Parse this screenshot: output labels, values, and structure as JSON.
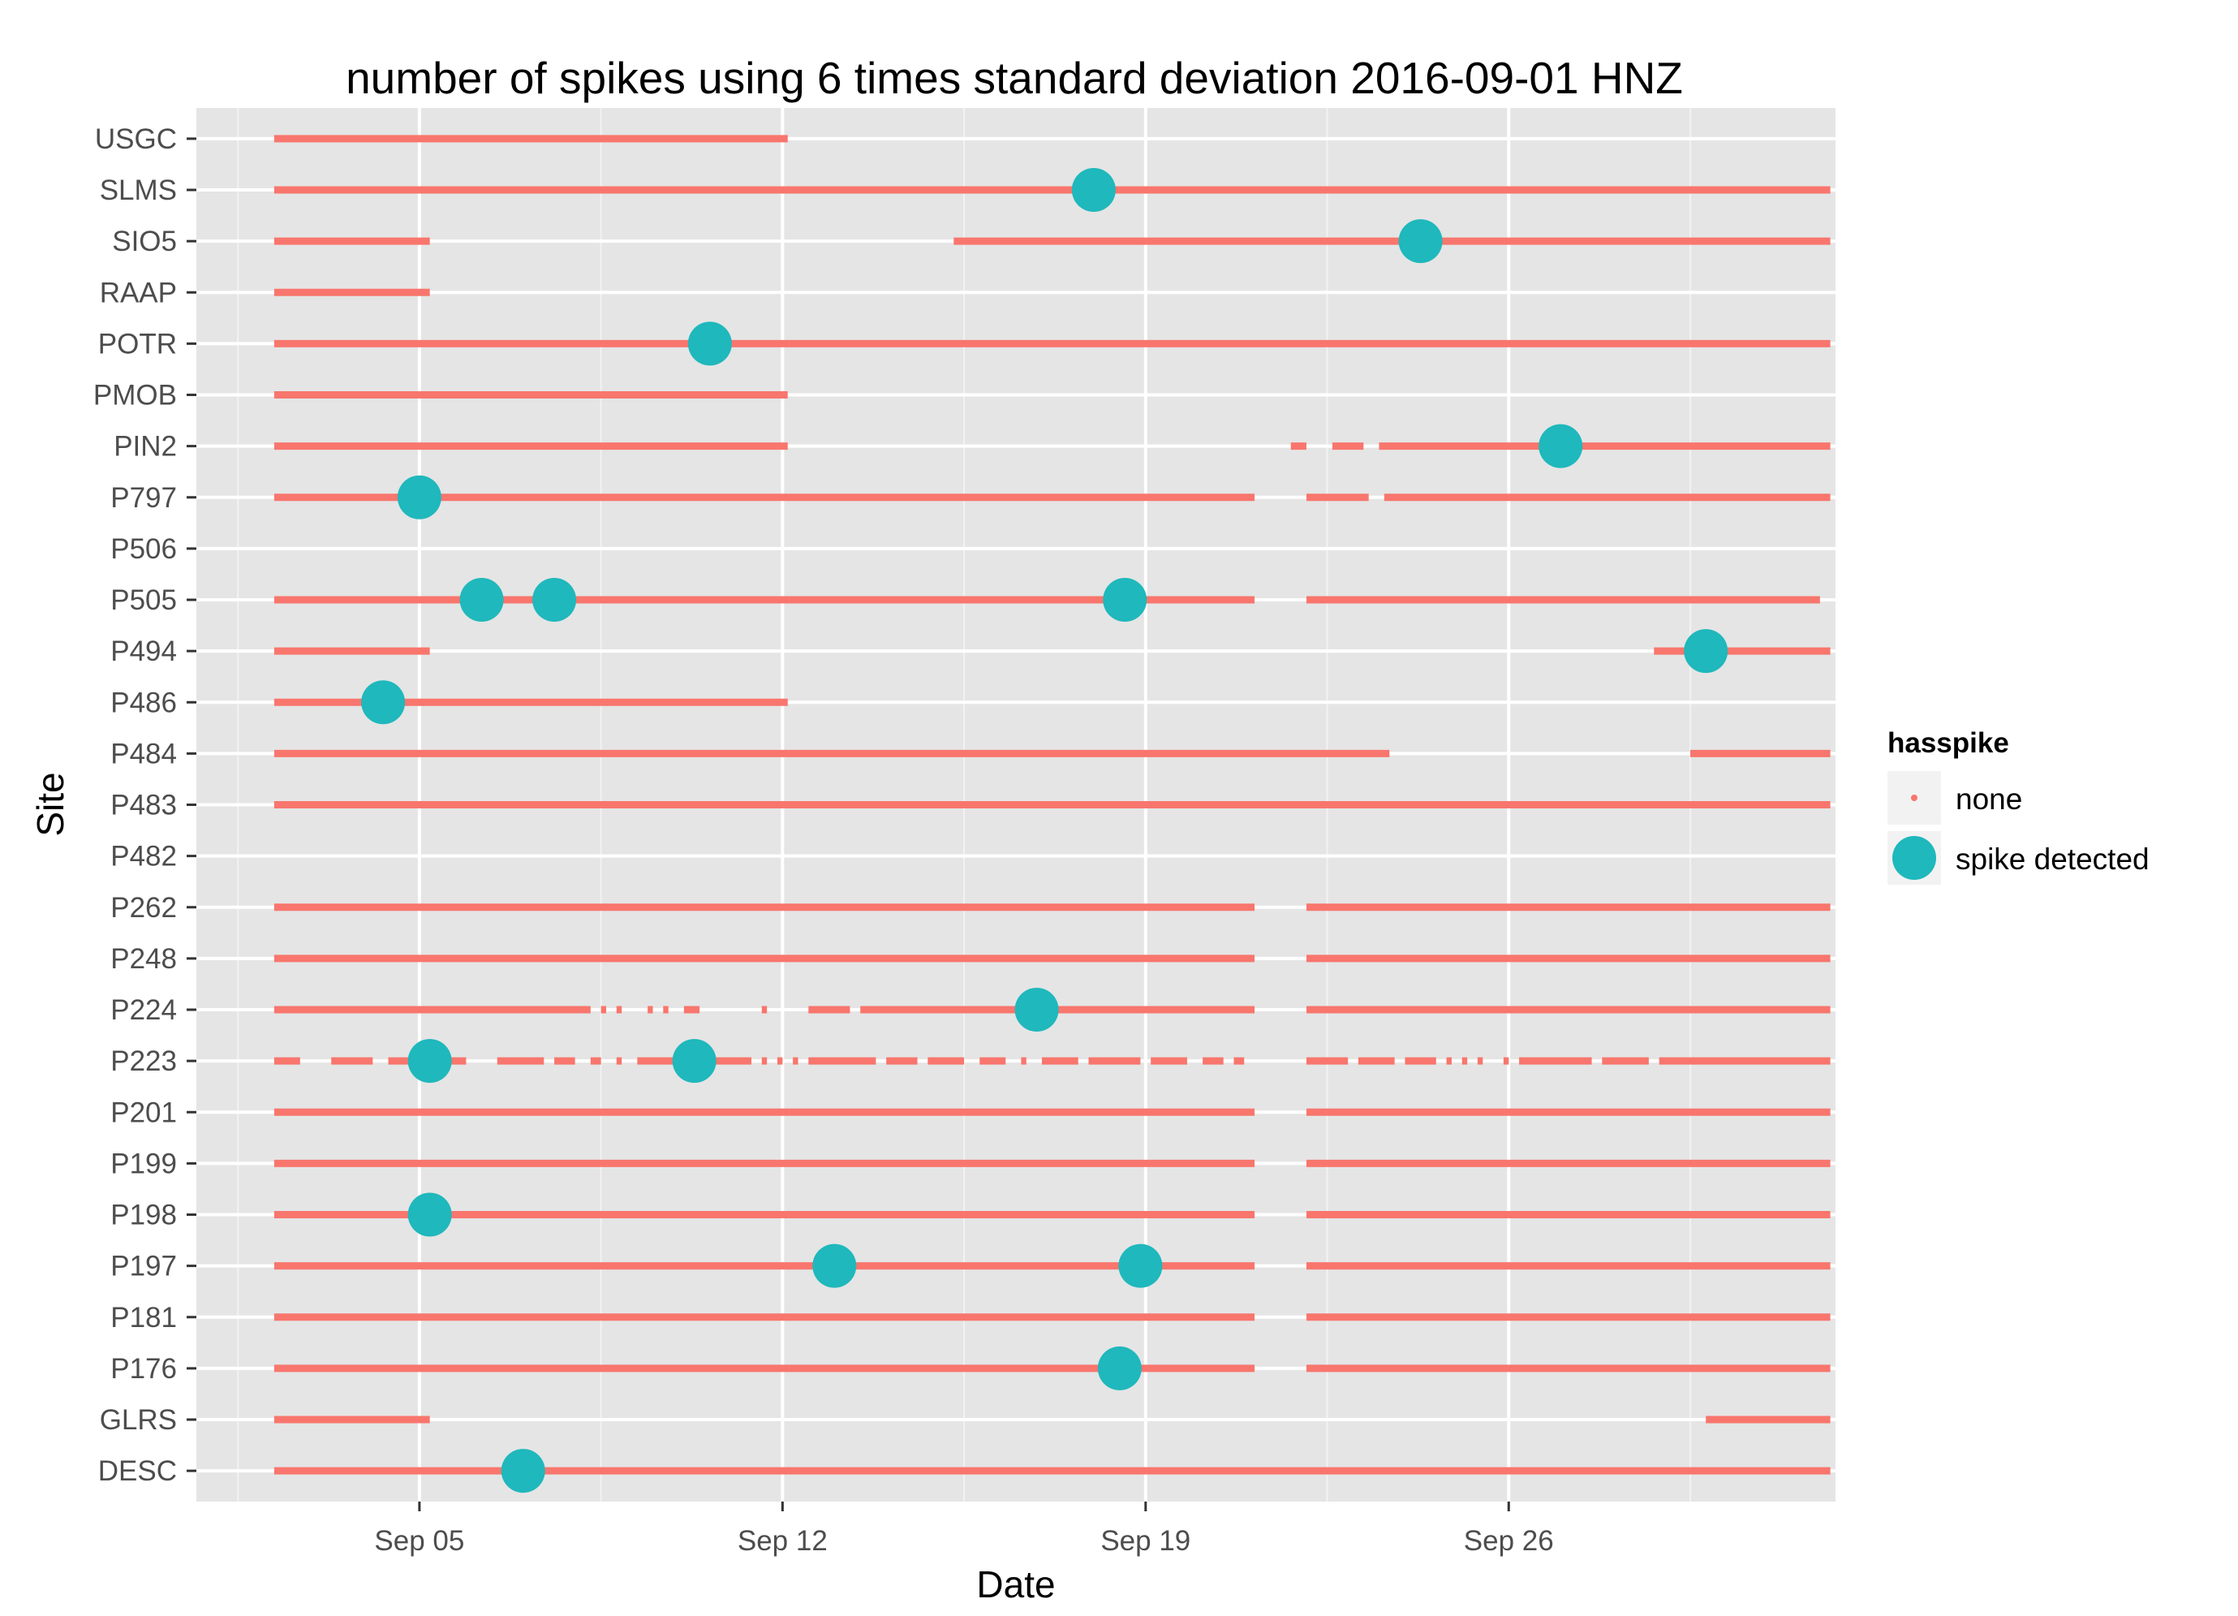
{
  "chart_data": {
    "type": "scatter",
    "title": "number of spikes using  6 times standard deviation 2016-09-01 HNZ",
    "xlabel": "Date",
    "ylabel": "Site",
    "x_domain_days": [
      -0.3,
      31.3
    ],
    "x_ticks": [
      {
        "day": 4,
        "label": "Sep 05"
      },
      {
        "day": 11,
        "label": "Sep 12"
      },
      {
        "day": 18,
        "label": "Sep 19"
      },
      {
        "day": 25,
        "label": "Sep 26"
      }
    ],
    "x_minor_ticks": [
      0.5,
      7.5,
      14.5,
      21.5,
      28.5
    ],
    "sites": [
      "USGC",
      "SLMS",
      "SIO5",
      "RAAP",
      "POTR",
      "PMOB",
      "PIN2",
      "P797",
      "P506",
      "P505",
      "P494",
      "P486",
      "P484",
      "P483",
      "P482",
      "P262",
      "P248",
      "P224",
      "P223",
      "P201",
      "P199",
      "P198",
      "P197",
      "P181",
      "P176",
      "GLRS",
      "DESC"
    ],
    "legend": {
      "title": "hasspike",
      "entries": [
        {
          "label": "none",
          "color": "#F8766D"
        },
        {
          "label": "spike detected",
          "color": "#1FB8BC"
        }
      ]
    },
    "colors": {
      "none": "#F8766D",
      "spike": "#1FB8BC"
    },
    "none_segments": [
      {
        "site": "USGC",
        "ranges": [
          [
            1.2,
            11.1
          ]
        ]
      },
      {
        "site": "SLMS",
        "ranges": [
          [
            1.2,
            31.2
          ]
        ]
      },
      {
        "site": "SIO5",
        "ranges": [
          [
            1.2,
            4.2
          ],
          [
            14.3,
            31.2
          ]
        ]
      },
      {
        "site": "RAAP",
        "ranges": [
          [
            1.2,
            4.2
          ]
        ]
      },
      {
        "site": "POTR",
        "ranges": [
          [
            1.2,
            31.2
          ]
        ]
      },
      {
        "site": "PMOB",
        "ranges": [
          [
            1.2,
            11.1
          ]
        ]
      },
      {
        "site": "PIN2",
        "ranges": [
          [
            1.2,
            11.1
          ],
          [
            20.8,
            21.1
          ],
          [
            21.6,
            22.2
          ],
          [
            22.5,
            31.2
          ]
        ]
      },
      {
        "site": "P797",
        "ranges": [
          [
            1.2,
            20.1
          ],
          [
            21.1,
            22.3
          ],
          [
            22.6,
            31.2
          ]
        ]
      },
      {
        "site": "P505",
        "ranges": [
          [
            1.2,
            20.1
          ],
          [
            21.1,
            31.0
          ]
        ]
      },
      {
        "site": "P494",
        "ranges": [
          [
            1.2,
            4.2
          ],
          [
            27.8,
            31.2
          ]
        ]
      },
      {
        "site": "P486",
        "ranges": [
          [
            1.2,
            11.1
          ]
        ]
      },
      {
        "site": "P484",
        "ranges": [
          [
            1.2,
            22.7
          ],
          [
            28.5,
            31.2
          ]
        ]
      },
      {
        "site": "P483",
        "ranges": [
          [
            1.2,
            31.2
          ]
        ]
      },
      {
        "site": "P262",
        "ranges": [
          [
            1.2,
            20.1
          ],
          [
            21.1,
            31.2
          ]
        ]
      },
      {
        "site": "P248",
        "ranges": [
          [
            1.2,
            20.1
          ],
          [
            21.1,
            31.2
          ]
        ]
      },
      {
        "site": "P224",
        "ranges": [
          [
            1.2,
            7.3
          ],
          [
            7.5,
            7.6
          ],
          [
            7.8,
            7.9
          ],
          [
            8.4,
            8.5
          ],
          [
            8.7,
            8.8
          ],
          [
            9.1,
            9.4
          ],
          [
            10.6,
            10.7
          ],
          [
            11.5,
            12.3
          ],
          [
            12.5,
            20.1
          ],
          [
            21.1,
            31.2
          ]
        ]
      },
      {
        "site": "P223",
        "ranges": [
          [
            1.2,
            1.7
          ],
          [
            2.3,
            3.1
          ],
          [
            3.4,
            3.9
          ],
          [
            4.1,
            4.9
          ],
          [
            5.5,
            6.4
          ],
          [
            6.6,
            7.0
          ],
          [
            7.3,
            7.5
          ],
          [
            7.8,
            7.9
          ],
          [
            8.2,
            10.4
          ],
          [
            10.6,
            10.7
          ],
          [
            10.9,
            11.0
          ],
          [
            11.2,
            11.3
          ],
          [
            11.5,
            12.8
          ],
          [
            13.0,
            13.6
          ],
          [
            13.8,
            14.5
          ],
          [
            14.8,
            15.3
          ],
          [
            15.6,
            15.7
          ],
          [
            16.0,
            16.7
          ],
          [
            16.9,
            17.9
          ],
          [
            18.1,
            18.8
          ],
          [
            19.1,
            19.5
          ],
          [
            19.7,
            19.9
          ],
          [
            21.1,
            21.9
          ],
          [
            22.1,
            22.8
          ],
          [
            23.0,
            23.6
          ],
          [
            23.8,
            23.9
          ],
          [
            24.1,
            24.2
          ],
          [
            24.4,
            24.5
          ],
          [
            24.9,
            25.0
          ],
          [
            25.2,
            26.6
          ],
          [
            26.8,
            27.7
          ],
          [
            27.9,
            31.2
          ]
        ]
      },
      {
        "site": "P201",
        "ranges": [
          [
            1.2,
            20.1
          ],
          [
            21.1,
            31.2
          ]
        ]
      },
      {
        "site": "P199",
        "ranges": [
          [
            1.2,
            20.1
          ],
          [
            21.1,
            31.2
          ]
        ]
      },
      {
        "site": "P198",
        "ranges": [
          [
            1.2,
            20.1
          ],
          [
            21.1,
            31.2
          ]
        ]
      },
      {
        "site": "P197",
        "ranges": [
          [
            1.2,
            20.1
          ],
          [
            21.1,
            31.2
          ]
        ]
      },
      {
        "site": "P181",
        "ranges": [
          [
            1.2,
            20.1
          ],
          [
            21.1,
            31.2
          ]
        ]
      },
      {
        "site": "P176",
        "ranges": [
          [
            1.2,
            20.1
          ],
          [
            21.1,
            31.2
          ]
        ]
      },
      {
        "site": "GLRS",
        "ranges": [
          [
            1.2,
            4.2
          ],
          [
            28.8,
            31.2
          ]
        ]
      },
      {
        "site": "DESC",
        "ranges": [
          [
            1.2,
            31.2
          ]
        ]
      }
    ],
    "spike_points": [
      {
        "site": "SLMS",
        "day": 17.0
      },
      {
        "site": "SIO5",
        "day": 23.3
      },
      {
        "site": "POTR",
        "day": 9.6
      },
      {
        "site": "PIN2",
        "day": 26.0
      },
      {
        "site": "P797",
        "day": 4.0
      },
      {
        "site": "P505",
        "day": 5.2
      },
      {
        "site": "P505",
        "day": 6.6
      },
      {
        "site": "P505",
        "day": 17.6
      },
      {
        "site": "P494",
        "day": 28.8
      },
      {
        "site": "P486",
        "day": 3.3
      },
      {
        "site": "P224",
        "day": 15.9
      },
      {
        "site": "P223",
        "day": 4.2
      },
      {
        "site": "P223",
        "day": 9.3
      },
      {
        "site": "P198",
        "day": 4.2
      },
      {
        "site": "P197",
        "day": 12.0
      },
      {
        "site": "P197",
        "day": 17.9
      },
      {
        "site": "P176",
        "day": 17.5
      },
      {
        "site": "DESC",
        "day": 6.0
      }
    ]
  }
}
